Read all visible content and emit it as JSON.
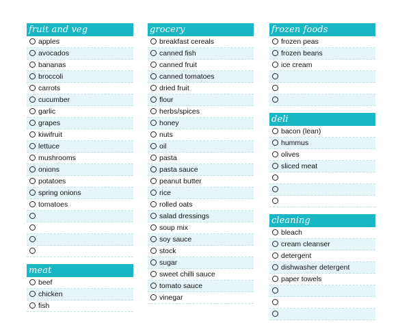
{
  "columns": [
    {
      "sections": [
        {
          "title": "fruit and veg",
          "items": [
            "apples",
            "avocados",
            "bananas",
            "broccoli",
            "carrots",
            "cucumber",
            "garlic",
            "grapes",
            "kiwifruit",
            "lettuce",
            "mushrooms",
            "onions",
            "potatoes",
            "spring onions",
            "tomatoes",
            "",
            "",
            "",
            ""
          ]
        },
        {
          "title": "meat",
          "items": [
            "beef",
            "chicken",
            "fish"
          ]
        }
      ]
    },
    {
      "sections": [
        {
          "title": "grocery",
          "items": [
            "breakfast cereals",
            "canned fish",
            "canned fruit",
            "canned tomatoes",
            "dried fruit",
            "flour",
            "herbs/spices",
            "honey",
            "nuts",
            "oil",
            "pasta",
            "pasta sauce",
            "peanut butter",
            "rice",
            "rolled oats",
            "salad dressings",
            "soup mix",
            "soy sauce",
            "stock",
            "sugar",
            "sweet chilli sauce",
            "tomato sauce",
            "vinegar"
          ]
        }
      ]
    },
    {
      "sections": [
        {
          "title": "frozen foods",
          "items": [
            "frozen peas",
            "frozen beans",
            "ice cream",
            "",
            "",
            ""
          ]
        },
        {
          "title": "deli",
          "items": [
            "bacon (lean)",
            "hummus",
            "olives",
            "sliced meat",
            "",
            "",
            ""
          ]
        },
        {
          "title": "cleaning",
          "items": [
            "bleach",
            "cream cleanser",
            "detergent",
            "dishwasher detergent",
            "paper towels",
            "",
            "",
            ""
          ]
        }
      ]
    }
  ]
}
